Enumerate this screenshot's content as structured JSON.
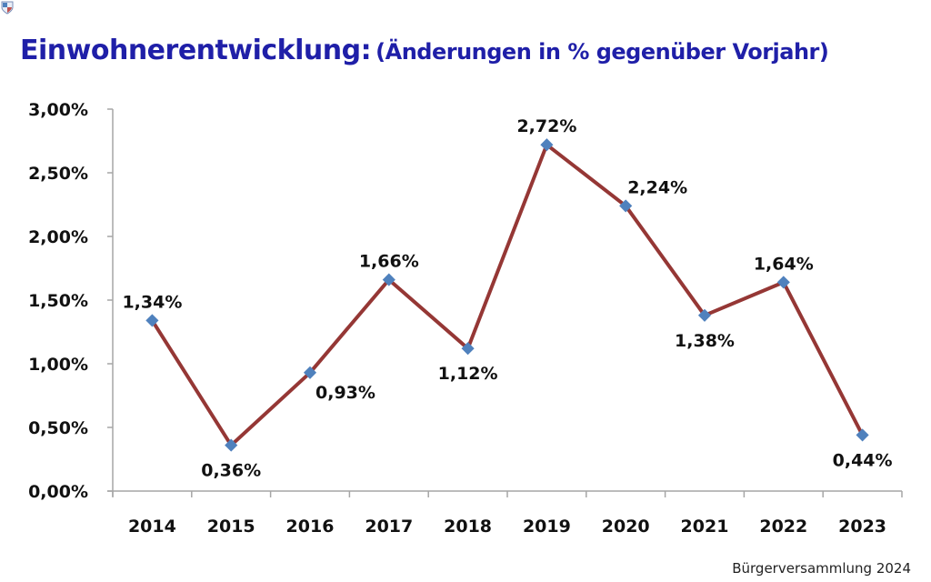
{
  "title": {
    "main": "Einwohnerentwicklung:",
    "sub": "(Änderungen in % gegenüber Vorjahr)"
  },
  "footer": {
    "text": "Bürgerversammlung 2024",
    "logo_icon": "coat-of-arms-icon"
  },
  "colors": {
    "title": "#1f1fa8",
    "line": "#953735",
    "marker": "#4f81bd",
    "axis": "#a6a6a6"
  },
  "chart_data": {
    "type": "line",
    "title": "Einwohnerentwicklung: (Änderungen in % gegenüber Vorjahr)",
    "xlabel": "",
    "ylabel": "",
    "categories": [
      "2014",
      "2015",
      "2016",
      "2017",
      "2018",
      "2019",
      "2020",
      "2021",
      "2022",
      "2023"
    ],
    "series": [
      {
        "name": "Änderungen in % gegenüber Vorjahr",
        "values": [
          1.34,
          0.36,
          0.93,
          1.66,
          1.12,
          2.72,
          2.24,
          1.38,
          1.64,
          0.44
        ],
        "labels": [
          "1,34%",
          "0,36%",
          "0,93%",
          "1,66%",
          "1,12%",
          "2,72%",
          "2,24%",
          "1,38%",
          "1,64%",
          "0,44%"
        ],
        "label_positions": [
          "above",
          "below",
          "right-below",
          "above",
          "below",
          "above",
          "above-right",
          "below",
          "above",
          "below"
        ]
      }
    ],
    "ylim": [
      0,
      3
    ],
    "yticks": [
      0,
      0.5,
      1,
      1.5,
      2,
      2.5,
      3
    ],
    "ytick_labels": [
      "0,00%",
      "0,50%",
      "1,00%",
      "1,50%",
      "2,00%",
      "2,50%",
      "3,00%"
    ],
    "grid": false,
    "legend": "none"
  }
}
